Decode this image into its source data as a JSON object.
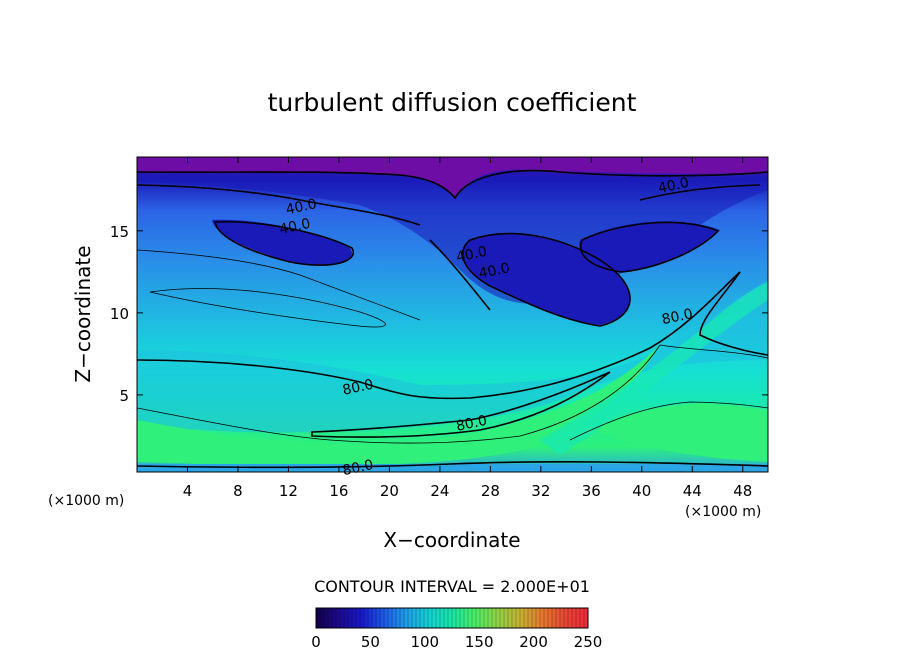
{
  "chart_data": {
    "type": "heatmap",
    "title": "turbulent diffusion coefficient",
    "xlabel": "X−coordinate",
    "ylabel": "Z−coordinate",
    "x_unit": "(×1000 m)",
    "xlim": [
      0,
      50
    ],
    "ylim": [
      0.3,
      19.5
    ],
    "x_ticks": [
      4,
      8,
      12,
      16,
      20,
      24,
      28,
      32,
      36,
      40,
      44,
      48
    ],
    "y_ticks": [
      5,
      10,
      15
    ],
    "contour_interval_label": "CONTOUR INTERVAL = 2.000E+01",
    "contour_labels": [
      {
        "text": "40.0",
        "x": 13,
        "y": 16.5
      },
      {
        "text": "40.0",
        "x": 12.5,
        "y": 15.3
      },
      {
        "text": "40.0",
        "x": 42.5,
        "y": 17.8
      },
      {
        "text": "40.0",
        "x": 26.5,
        "y": 13.6
      },
      {
        "text": "40.0",
        "x": 28.3,
        "y": 12.6
      },
      {
        "text": "80.0",
        "x": 17.5,
        "y": 5.5
      },
      {
        "text": "80.0",
        "x": 26.5,
        "y": 3.3
      },
      {
        "text": "80.0",
        "x": 42.8,
        "y": 9.8
      },
      {
        "text": "80.0",
        "x": 17.5,
        "y": 0.6
      }
    ],
    "colorbar": {
      "min": 0,
      "max": 250,
      "ticks": [
        0,
        50,
        100,
        150,
        200,
        250
      ],
      "colors": [
        "#12004a",
        "#1c0a8c",
        "#1818c8",
        "#1e5ae6",
        "#1e9ee6",
        "#14d2d2",
        "#18e6a6",
        "#4aee66",
        "#8ed246",
        "#c6b232",
        "#e6782e",
        "#e64632",
        "#f0283c"
      ]
    },
    "field_colors": {
      "top": "#6e0ca6",
      "upper_dark": "#1a1ab8",
      "upper": "#2c64e6",
      "mid": "#2a8ee8",
      "light": "#1ec2e0",
      "cyan": "#16e0d4",
      "aqua": "#18e8b4",
      "green": "#2ef07a",
      "bottom": "#2aa6e6"
    }
  }
}
